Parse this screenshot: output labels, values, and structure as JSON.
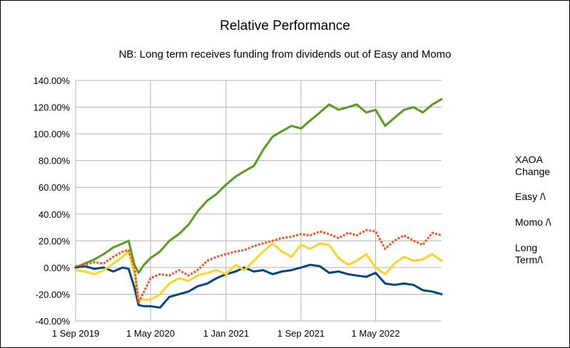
{
  "chart_data": {
    "type": "line",
    "title": "Relative Performance",
    "subtitle": "NB: Long term receives funding from dividends out of Easy and Momo",
    "xlabel": "",
    "ylabel": "",
    "ylim": [
      -0.4,
      1.4
    ],
    "yticks": [
      "140.00%",
      "120.00%",
      "100.00%",
      "80.00%",
      "60.00%",
      "40.00%",
      "20.00%",
      "0.00%",
      "-20.00%",
      "-40.00%"
    ],
    "xticks": [
      "1 Sep 2019",
      "1 May 2020",
      "1 Jan 2021",
      "1 Sep 2021",
      "1 May 2022"
    ],
    "xlim": [
      "2019-09-01",
      "2022-12-01"
    ],
    "grid": true,
    "legend_position": "right",
    "series": [
      {
        "name": "XAOA Change",
        "color": "#f4511e",
        "style": "dotted",
        "x": [
          "2019-09-01",
          "2019-10-01",
          "2019-11-01",
          "2019-12-01",
          "2020-01-01",
          "2020-02-01",
          "2020-02-20",
          "2020-03-10",
          "2020-03-23",
          "2020-04-10",
          "2020-05-01",
          "2020-06-01",
          "2020-07-01",
          "2020-08-01",
          "2020-09-01",
          "2020-10-01",
          "2020-11-01",
          "2020-12-01",
          "2021-01-01",
          "2021-02-01",
          "2021-03-01",
          "2021-04-01",
          "2021-05-01",
          "2021-06-01",
          "2021-07-01",
          "2021-08-01",
          "2021-09-01",
          "2021-10-01",
          "2021-11-01",
          "2021-12-01",
          "2022-01-01",
          "2022-02-01",
          "2022-03-01",
          "2022-04-01",
          "2022-05-01",
          "2022-06-01",
          "2022-07-01",
          "2022-08-01",
          "2022-09-01",
          "2022-10-01",
          "2022-11-01",
          "2022-12-01"
        ],
        "y": [
          0.01,
          0.02,
          0.04,
          0.03,
          0.08,
          0.12,
          0.13,
          0.0,
          -0.26,
          -0.18,
          -0.08,
          -0.05,
          -0.06,
          -0.02,
          -0.06,
          -0.02,
          0.05,
          0.08,
          0.1,
          0.12,
          0.13,
          0.16,
          0.18,
          0.2,
          0.22,
          0.23,
          0.25,
          0.24,
          0.27,
          0.25,
          0.22,
          0.26,
          0.24,
          0.28,
          0.27,
          0.14,
          0.2,
          0.24,
          0.2,
          0.17,
          0.26,
          0.24
        ]
      },
      {
        "name": "Easy /\\",
        "color": "#004586",
        "style": "solid",
        "x": [
          "2019-09-01",
          "2019-10-01",
          "2019-11-01",
          "2019-12-01",
          "2020-01-01",
          "2020-02-01",
          "2020-02-20",
          "2020-03-10",
          "2020-03-23",
          "2020-04-10",
          "2020-05-01",
          "2020-06-01",
          "2020-07-01",
          "2020-08-01",
          "2020-09-01",
          "2020-10-01",
          "2020-11-01",
          "2020-12-01",
          "2021-01-01",
          "2021-02-01",
          "2021-03-01",
          "2021-04-01",
          "2021-05-01",
          "2021-06-01",
          "2021-07-01",
          "2021-08-01",
          "2021-09-01",
          "2021-10-01",
          "2021-11-01",
          "2021-12-01",
          "2022-01-01",
          "2022-02-01",
          "2022-03-01",
          "2022-04-01",
          "2022-05-01",
          "2022-06-01",
          "2022-07-01",
          "2022-08-01",
          "2022-09-01",
          "2022-10-01",
          "2022-11-01",
          "2022-12-01"
        ],
        "y": [
          0.0,
          0.01,
          -0.01,
          0.0,
          -0.03,
          0.0,
          -0.01,
          -0.15,
          -0.28,
          -0.29,
          -0.29,
          -0.3,
          -0.22,
          -0.2,
          -0.18,
          -0.14,
          -0.12,
          -0.08,
          -0.05,
          -0.03,
          0.0,
          -0.03,
          -0.02,
          -0.05,
          -0.03,
          -0.02,
          0.0,
          0.02,
          0.01,
          -0.04,
          -0.03,
          -0.05,
          -0.06,
          -0.07,
          -0.04,
          -0.12,
          -0.13,
          -0.12,
          -0.13,
          -0.17,
          -0.18,
          -0.2
        ]
      },
      {
        "name": "Momo /\\",
        "color": "#ffd320",
        "style": "solid",
        "x": [
          "2019-09-01",
          "2019-10-01",
          "2019-11-01",
          "2019-12-01",
          "2020-01-01",
          "2020-02-01",
          "2020-02-20",
          "2020-03-10",
          "2020-03-23",
          "2020-04-10",
          "2020-05-01",
          "2020-06-01",
          "2020-07-01",
          "2020-08-01",
          "2020-09-01",
          "2020-10-01",
          "2020-11-01",
          "2020-12-01",
          "2021-01-01",
          "2021-02-01",
          "2021-03-01",
          "2021-04-01",
          "2021-05-01",
          "2021-06-01",
          "2021-07-01",
          "2021-08-01",
          "2021-09-01",
          "2021-10-01",
          "2021-11-01",
          "2021-12-01",
          "2022-01-01",
          "2022-02-01",
          "2022-03-01",
          "2022-04-01",
          "2022-05-01",
          "2022-06-01",
          "2022-07-01",
          "2022-08-01",
          "2022-09-01",
          "2022-10-01",
          "2022-11-01",
          "2022-12-01"
        ],
        "y": [
          -0.02,
          -0.03,
          -0.05,
          -0.02,
          0.03,
          0.08,
          0.12,
          -0.04,
          -0.24,
          -0.24,
          -0.24,
          -0.2,
          -0.12,
          -0.08,
          -0.1,
          -0.06,
          -0.04,
          -0.02,
          -0.05,
          0.02,
          -0.02,
          0.05,
          0.12,
          0.18,
          0.12,
          0.08,
          0.17,
          0.14,
          0.18,
          0.17,
          0.07,
          0.02,
          0.05,
          0.1,
          0.0,
          -0.05,
          0.03,
          0.08,
          0.05,
          0.06,
          0.1,
          0.05
        ]
      },
      {
        "name": "Long Term/\\",
        "color": "#579d1c",
        "style": "solid",
        "x": [
          "2019-09-01",
          "2019-10-01",
          "2019-11-01",
          "2019-12-01",
          "2020-01-01",
          "2020-02-01",
          "2020-02-20",
          "2020-03-10",
          "2020-03-23",
          "2020-04-10",
          "2020-05-01",
          "2020-06-01",
          "2020-07-01",
          "2020-08-01",
          "2020-09-01",
          "2020-10-01",
          "2020-11-01",
          "2020-12-01",
          "2021-01-01",
          "2021-02-01",
          "2021-03-01",
          "2021-04-01",
          "2021-05-01",
          "2021-06-01",
          "2021-07-01",
          "2021-08-01",
          "2021-09-01",
          "2021-10-01",
          "2021-11-01",
          "2021-12-01",
          "2022-01-01",
          "2022-02-01",
          "2022-03-01",
          "2022-04-01",
          "2022-05-01",
          "2022-06-01",
          "2022-07-01",
          "2022-08-01",
          "2022-09-01",
          "2022-10-01",
          "2022-11-01",
          "2022-12-01"
        ],
        "y": [
          0.0,
          0.03,
          0.06,
          0.1,
          0.15,
          0.18,
          0.2,
          0.02,
          -0.04,
          0.02,
          0.07,
          0.12,
          0.2,
          0.25,
          0.32,
          0.42,
          0.5,
          0.55,
          0.62,
          0.68,
          0.72,
          0.76,
          0.88,
          0.98,
          1.02,
          1.06,
          1.04,
          1.1,
          1.16,
          1.22,
          1.18,
          1.2,
          1.22,
          1.16,
          1.18,
          1.06,
          1.12,
          1.18,
          1.2,
          1.16,
          1.22,
          1.26
        ]
      }
    ]
  },
  "legend_labels": [
    "XAOA Change",
    "Easy /\\",
    "Momo /\\",
    "Long Term/\\"
  ]
}
